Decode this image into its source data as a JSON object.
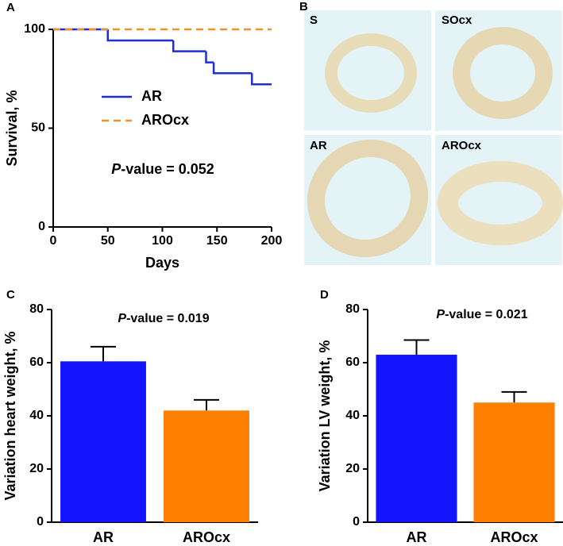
{
  "chart_data": [
    {
      "type": "step",
      "panel_label": "A",
      "x_label": "Days",
      "y_label": "Survival, %",
      "annotation": {
        "italic": "P",
        "text": "-value = 0.052"
      },
      "xlim": [
        0,
        200
      ],
      "xticks": [
        0,
        50,
        100,
        150,
        200
      ],
      "ylim": [
        0,
        100
      ],
      "yticks": [
        0,
        50,
        100
      ],
      "legend": "center-left",
      "series": [
        {
          "name": "AR",
          "color": "#1f2fd0",
          "dash": false,
          "x": [
            0,
            50,
            110,
            140,
            147,
            182,
            200
          ],
          "values": [
            100,
            94.4,
            88.9,
            83.3,
            77.8,
            72.2,
            72.2
          ]
        },
        {
          "name": "AROcx",
          "color": "#f0902a",
          "dash": true,
          "x": [
            0,
            200
          ],
          "values": [
            100,
            100
          ]
        }
      ]
    },
    {
      "type": "bar",
      "panel_label": "C",
      "y_label": "Variation heart weight, %",
      "annotation": {
        "italic": "P",
        "text": "-value = 0.019"
      },
      "categories": [
        "AR",
        "AROcx"
      ],
      "values": [
        60.5,
        42
      ],
      "errors": [
        5.5,
        4
      ],
      "colors": [
        "#1414ff",
        "#ff8000"
      ],
      "ylim": [
        0,
        80
      ],
      "yticks": [
        0,
        20,
        40,
        60,
        80
      ]
    },
    {
      "type": "bar",
      "panel_label": "D",
      "y_label": "Variation LV weight, %",
      "annotation": {
        "italic": "P",
        "text": "-value = 0.021"
      },
      "categories": [
        "AR",
        "AROcx"
      ],
      "values": [
        63,
        45
      ],
      "errors": [
        5.5,
        4
      ],
      "colors": [
        "#1414ff",
        "#ff8000"
      ],
      "ylim": [
        0,
        80
      ],
      "yticks": [
        0,
        20,
        40,
        60,
        80
      ]
    }
  ],
  "image_panel": {
    "panel_label": "B",
    "tiles": [
      {
        "label": "S"
      },
      {
        "label": "SOcx"
      },
      {
        "label": "AR"
      },
      {
        "label": "AROcx"
      }
    ]
  }
}
